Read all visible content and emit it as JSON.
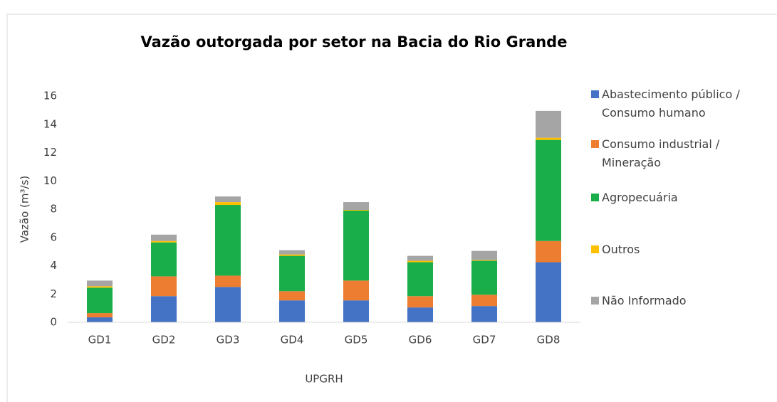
{
  "chart_data": {
    "type": "stacked_bar",
    "title": "Vazão outorgada por setor na Bacia do Rio Grande",
    "x_label": "UPGRH",
    "y_label": "Vazão (m³/s)",
    "categories": [
      "GD1",
      "GD2",
      "GD3",
      "GD4",
      "GD5",
      "GD6",
      "GD7",
      "GD8"
    ],
    "series": [
      {
        "name": "Abastecimento público / Consumo humano",
        "color": "#4472c4",
        "values": [
          0.35,
          1.85,
          2.5,
          1.55,
          1.55,
          1.05,
          1.15,
          4.25
        ]
      },
      {
        "name": "Consumo industrial / Mineração",
        "color": "#ed7d31",
        "values": [
          0.3,
          1.4,
          0.8,
          0.65,
          1.4,
          0.8,
          0.8,
          1.5
        ]
      },
      {
        "name": "Agropecuária",
        "color": "#1aae4a",
        "values": [
          1.8,
          2.4,
          5.0,
          2.5,
          4.95,
          2.4,
          2.4,
          7.15
        ]
      },
      {
        "name": "Outros",
        "color": "#ffc000",
        "values": [
          0.1,
          0.1,
          0.2,
          0.1,
          0.05,
          0.1,
          0.05,
          0.15
        ]
      },
      {
        "name": "Não Informado",
        "color": "#a5a5a5",
        "values": [
          0.4,
          0.45,
          0.4,
          0.3,
          0.55,
          0.35,
          0.65,
          1.9
        ]
      }
    ],
    "ylim": [
      0,
      16
    ],
    "yticks": [
      0,
      2,
      4,
      6,
      8,
      10,
      12,
      14,
      16
    ],
    "grid": false
  }
}
